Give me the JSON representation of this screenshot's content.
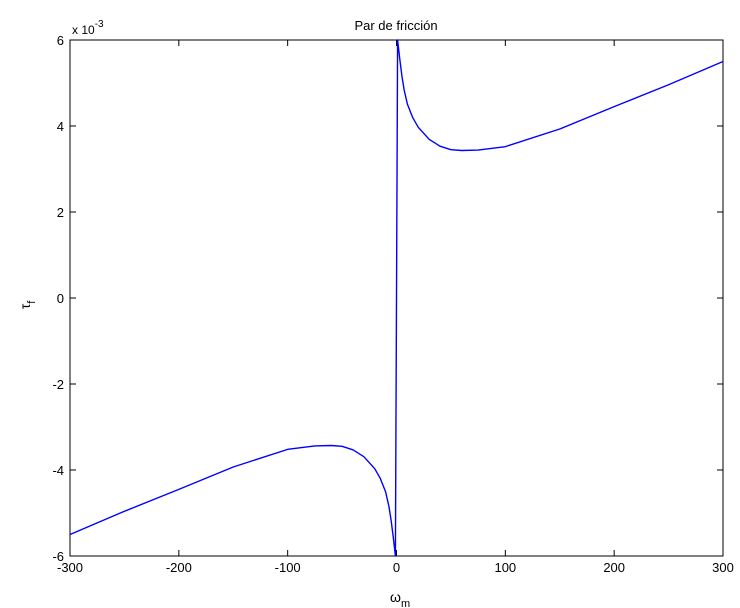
{
  "chart_data": {
    "type": "line",
    "title": "Par de fricción",
    "xlabel": "ω",
    "xlabel_sub": "m",
    "ylabel": "τ",
    "ylabel_sub": "f",
    "y_exponent_base": "x 10",
    "y_exponent_power": "-3",
    "xlim": [
      -300,
      300
    ],
    "ylim": [
      -6,
      6
    ],
    "y_scale_factor": 0.001,
    "xticks": [
      -300,
      -200,
      -100,
      0,
      100,
      200,
      300
    ],
    "yticks": [
      -6,
      -4,
      -2,
      0,
      2,
      4,
      6
    ],
    "grid": false,
    "line_color": "#0000ff",
    "series": [
      {
        "x": [
          -300,
          -250,
          -200,
          -150,
          -100,
          -75,
          -60,
          -50,
          -40,
          -30,
          -20,
          -15,
          -10,
          -7,
          -5,
          -3,
          -2,
          -1,
          -0.5,
          0.5,
          1,
          2,
          3,
          5,
          7,
          10,
          15,
          20,
          30,
          40,
          50,
          60,
          75,
          100,
          150,
          200,
          250,
          300
        ],
        "y": [
          -5.5,
          -4.96,
          -4.45,
          -3.93,
          -3.52,
          -3.44,
          -3.43,
          -3.45,
          -3.53,
          -3.69,
          -3.97,
          -4.19,
          -4.51,
          -4.84,
          -5.16,
          -5.56,
          -5.78,
          -6.0,
          -2.9,
          2.9,
          6.0,
          5.78,
          5.56,
          5.16,
          4.84,
          4.51,
          4.19,
          3.97,
          3.69,
          3.53,
          3.45,
          3.43,
          3.44,
          3.52,
          3.93,
          4.45,
          4.96,
          5.5
        ]
      }
    ]
  }
}
